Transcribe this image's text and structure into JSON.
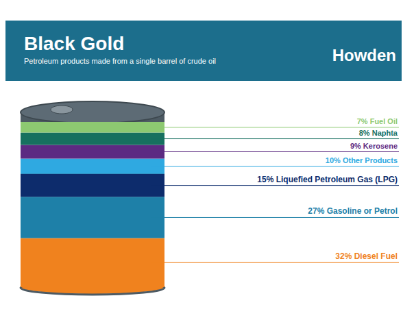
{
  "chart_data": {
    "type": "bar",
    "stacked": true,
    "title": "Black Gold",
    "subtitle": "Petroleum products made from a single barrel of crude oil",
    "annotations": [
      "Howden"
    ],
    "categories": [
      "Fuel Oil",
      "Naphta",
      "Kerosene",
      "Other Products",
      "Liquefied Petroleum Gas (LPG)",
      "Gasoline or Petrol",
      "Diesel Fuel"
    ],
    "values": [
      7,
      8,
      9,
      10,
      15,
      27,
      32
    ],
    "value_labels": [
      "7% Fuel Oil",
      "8% Naphta",
      "9% Kerosene",
      "10% Other Products",
      "15% Liquefied Petroleum Gas (LPG)",
      "27% Gasoline or Petrol",
      "32% Diesel Fuel"
    ],
    "colors": [
      "#8dc971",
      "#16705f",
      "#5c2a82",
      "#2fa9e1",
      "#0d2c6c",
      "#1e80a8",
      "#f0821e"
    ],
    "data_labels": true,
    "tick_labels": false
  }
}
